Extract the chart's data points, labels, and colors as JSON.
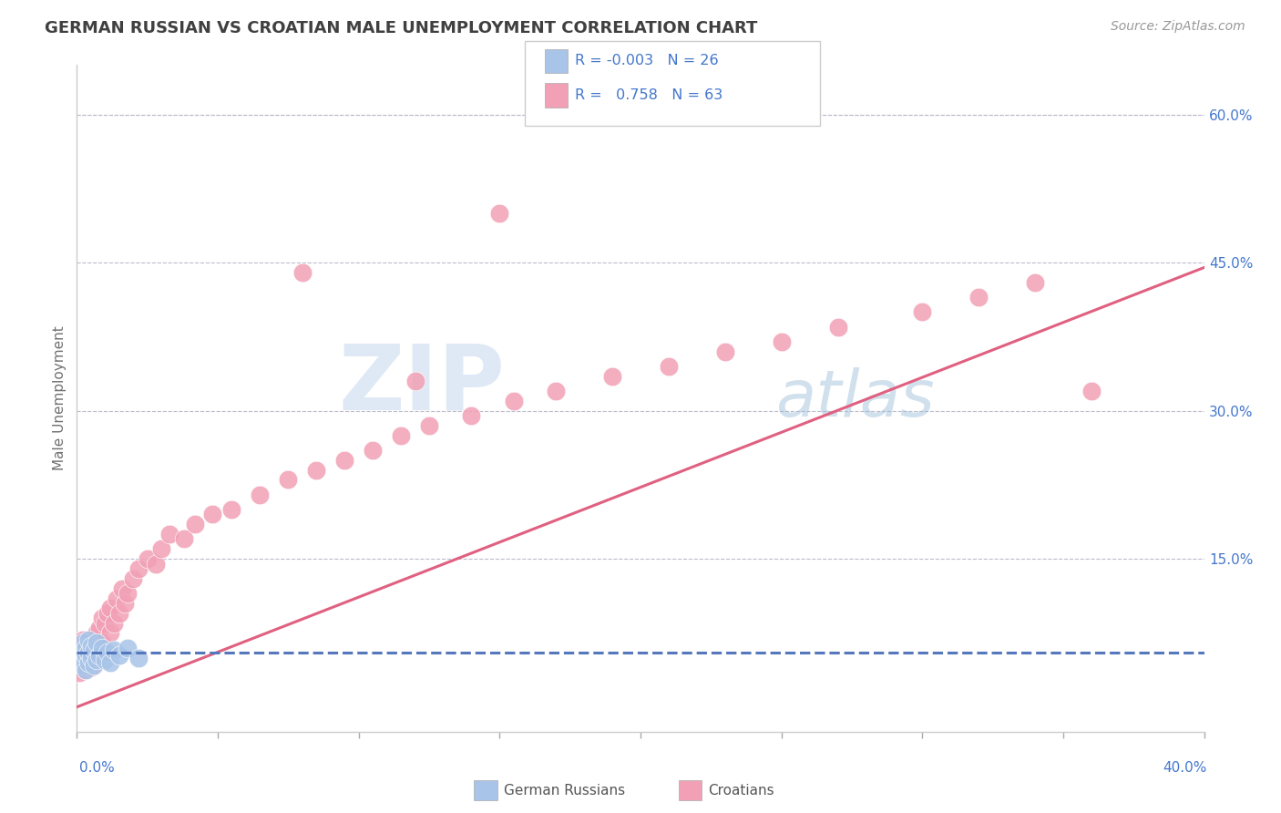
{
  "title": "GERMAN RUSSIAN VS CROATIAN MALE UNEMPLOYMENT CORRELATION CHART",
  "source": "Source: ZipAtlas.com",
  "ylabel": "Male Unemployment",
  "right_yticklabels": [
    "",
    "15.0%",
    "30.0%",
    "45.0%",
    "60.0%"
  ],
  "right_ytick_vals": [
    0.0,
    0.15,
    0.3,
    0.45,
    0.6
  ],
  "xlim": [
    0.0,
    0.4
  ],
  "ylim": [
    -0.025,
    0.65
  ],
  "color_blue": "#A8C4E8",
  "color_pink": "#F2A0B5",
  "color_blue_line": "#5577BB",
  "color_pink_line": "#E06080",
  "color_title": "#404040",
  "color_source": "#999999",
  "color_legend_text": "#4477CC",
  "color_grid": "#BBBBCC",
  "gr_x": [
    0.001,
    0.001,
    0.002,
    0.002,
    0.002,
    0.003,
    0.003,
    0.003,
    0.004,
    0.004,
    0.004,
    0.005,
    0.005,
    0.006,
    0.006,
    0.007,
    0.007,
    0.008,
    0.009,
    0.01,
    0.011,
    0.012,
    0.013,
    0.015,
    0.018,
    0.022
  ],
  "gr_y": [
    0.048,
    0.055,
    0.042,
    0.058,
    0.065,
    0.038,
    0.052,
    0.06,
    0.045,
    0.055,
    0.068,
    0.05,
    0.062,
    0.042,
    0.058,
    0.048,
    0.065,
    0.052,
    0.06,
    0.048,
    0.055,
    0.045,
    0.058,
    0.052,
    0.06,
    0.05
  ],
  "cr_x": [
    0.001,
    0.001,
    0.002,
    0.002,
    0.002,
    0.003,
    0.003,
    0.003,
    0.004,
    0.004,
    0.005,
    0.005,
    0.006,
    0.006,
    0.007,
    0.007,
    0.008,
    0.008,
    0.009,
    0.009,
    0.01,
    0.01,
    0.011,
    0.012,
    0.012,
    0.013,
    0.014,
    0.015,
    0.016,
    0.017,
    0.018,
    0.02,
    0.022,
    0.025,
    0.028,
    0.03,
    0.033,
    0.038,
    0.042,
    0.048,
    0.055,
    0.065,
    0.075,
    0.085,
    0.095,
    0.105,
    0.115,
    0.125,
    0.14,
    0.155,
    0.17,
    0.19,
    0.21,
    0.23,
    0.25,
    0.27,
    0.3,
    0.32,
    0.34,
    0.36,
    0.15,
    0.08,
    0.12
  ],
  "cr_y": [
    0.035,
    0.06,
    0.042,
    0.055,
    0.068,
    0.038,
    0.052,
    0.065,
    0.045,
    0.058,
    0.04,
    0.062,
    0.048,
    0.07,
    0.052,
    0.075,
    0.06,
    0.08,
    0.065,
    0.09,
    0.055,
    0.085,
    0.095,
    0.075,
    0.1,
    0.085,
    0.11,
    0.095,
    0.12,
    0.105,
    0.115,
    0.13,
    0.14,
    0.15,
    0.145,
    0.16,
    0.175,
    0.17,
    0.185,
    0.195,
    0.2,
    0.215,
    0.23,
    0.24,
    0.25,
    0.26,
    0.275,
    0.285,
    0.295,
    0.31,
    0.32,
    0.335,
    0.345,
    0.36,
    0.37,
    0.385,
    0.4,
    0.415,
    0.43,
    0.32,
    0.5,
    0.44,
    0.33
  ],
  "cr_line_x0": 0.0,
  "cr_line_y0": 0.0,
  "cr_line_x1": 0.4,
  "cr_line_y1": 0.445,
  "gr_line_y": 0.055,
  "bottom_legend_items": [
    {
      "label": "German Russians",
      "color": "#A8C4E8"
    },
    {
      "label": "Croatians",
      "color": "#F2A0B5"
    }
  ]
}
